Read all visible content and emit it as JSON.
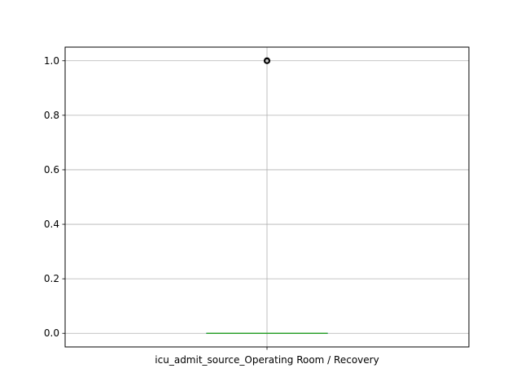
{
  "chart_data": {
    "type": "box",
    "title": "",
    "xlabel": "",
    "ylabel": "",
    "categories": [
      "icu_admit_source_Operating Room / Recovery"
    ],
    "boxes": [
      {
        "name": "icu_admit_source_Operating Room / Recovery",
        "whislo": 0.0,
        "q1": 0.0,
        "median": 0.0,
        "q3": 0.0,
        "whishi": 0.0,
        "fliers": [
          1.0
        ]
      }
    ],
    "ylim": [
      -0.05,
      1.05
    ],
    "yticks": [
      0.0,
      0.2,
      0.4,
      0.6,
      0.8,
      1.0
    ],
    "ytick_labels": [
      "0.0",
      "0.2",
      "0.4",
      "0.6",
      "0.8",
      "1.0"
    ],
    "grid": true,
    "colors": {
      "grid": "#b0b0b0",
      "median": "#2ca02c",
      "box": "#1f77b4",
      "flier": "#000000",
      "axes": "#000000"
    }
  }
}
